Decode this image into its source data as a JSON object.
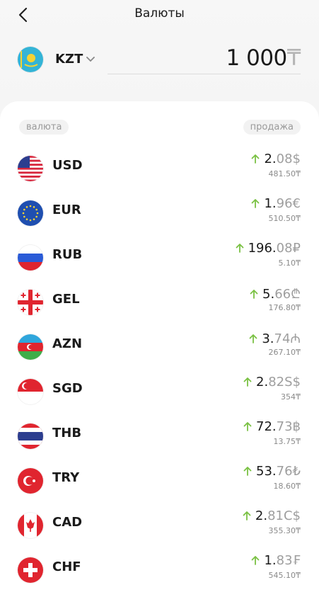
{
  "header": {
    "title": "Валюты"
  },
  "base": {
    "code": "KZT",
    "amount": "1 000",
    "symbol": "₸"
  },
  "columns": {
    "left": "валюта",
    "right": "продажа"
  },
  "rows": [
    {
      "code": "USD",
      "whole": "2.",
      "frac": "08",
      "symbol": "$",
      "rate": "481.50₸"
    },
    {
      "code": "EUR",
      "whole": "1.",
      "frac": "96",
      "symbol": "€",
      "rate": "510.50₸"
    },
    {
      "code": "RUB",
      "whole": "196.",
      "frac": "08",
      "symbol": "₽",
      "rate": "5.10₸"
    },
    {
      "code": "GEL",
      "whole": "5.",
      "frac": "66",
      "symbol": "₾",
      "rate": "176.80₸"
    },
    {
      "code": "AZN",
      "whole": "3.",
      "frac": "74",
      "symbol": "₼",
      "rate": "267.10₸"
    },
    {
      "code": "SGD",
      "whole": "2.",
      "frac": "82",
      "symbol": "S$",
      "rate": "354₸"
    },
    {
      "code": "THB",
      "whole": "72.",
      "frac": "73",
      "symbol": "฿",
      "rate": "13.75₸"
    },
    {
      "code": "TRY",
      "whole": "53.",
      "frac": "76",
      "symbol": "₺",
      "rate": "18.60₸"
    },
    {
      "code": "CAD",
      "whole": "2.",
      "frac": "81",
      "symbol": "C$",
      "rate": "355.30₸"
    },
    {
      "code": "CHF",
      "whole": "1.",
      "frac": "83",
      "symbol": "₣",
      "rate": "545.10₸"
    }
  ]
}
